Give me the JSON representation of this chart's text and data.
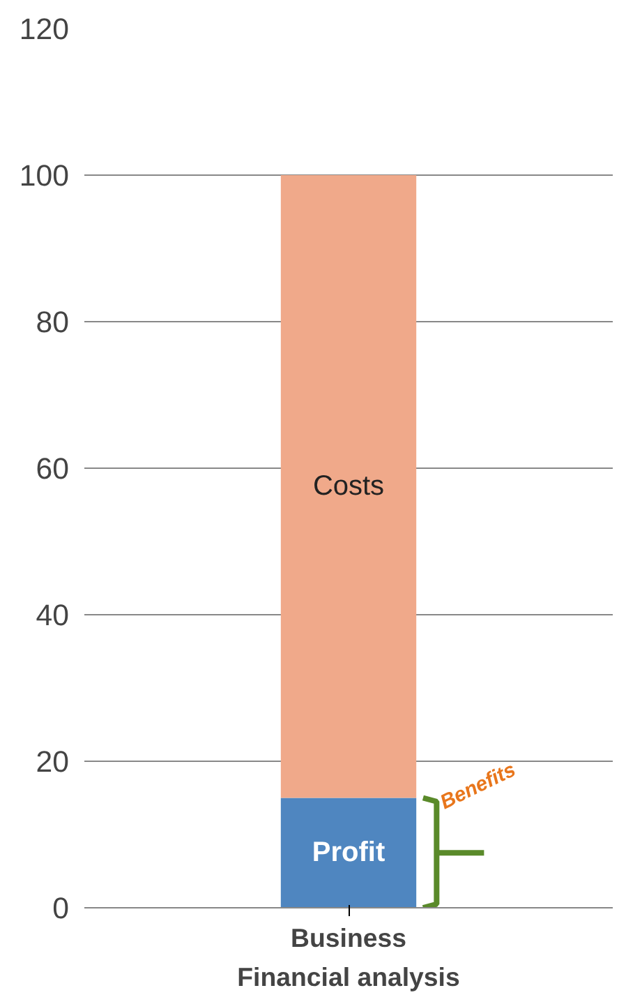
{
  "chart_data": {
    "type": "bar",
    "stacked": true,
    "categories": [
      "Business"
    ],
    "xlabel": "Financial analysis",
    "series": [
      {
        "name": "Profit",
        "color": "#4f86c0",
        "values": [
          15
        ]
      },
      {
        "name": "Costs",
        "color": "#f0a98a",
        "values": [
          85
        ]
      }
    ],
    "ylim": [
      0,
      120
    ],
    "yticks": [
      0,
      20,
      40,
      60,
      80,
      100,
      120
    ],
    "grid": "y",
    "annotations": [
      "Benefits"
    ]
  }
}
